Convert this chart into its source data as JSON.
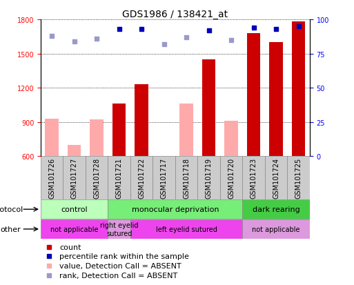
{
  "title": "GDS1986 / 138421_at",
  "samples": [
    "GSM101726",
    "GSM101727",
    "GSM101728",
    "GSM101721",
    "GSM101722",
    "GSM101717",
    "GSM101718",
    "GSM101719",
    "GSM101720",
    "GSM101723",
    "GSM101724",
    "GSM101725"
  ],
  "left_ylim": [
    600,
    1800
  ],
  "left_yticks": [
    600,
    900,
    1200,
    1500,
    1800
  ],
  "right_ylim": [
    0,
    100
  ],
  "right_yticks": [
    0,
    25,
    50,
    75,
    100
  ],
  "bar_red_values": [
    null,
    null,
    null,
    1060,
    1230,
    null,
    null,
    1450,
    null,
    1680,
    1600,
    1780
  ],
  "bar_pink_values": [
    930,
    700,
    920,
    null,
    null,
    580,
    1060,
    null,
    910,
    null,
    null,
    null
  ],
  "dot_blue_values": [
    null,
    null,
    null,
    93,
    93,
    null,
    null,
    92,
    null,
    94,
    93,
    95
  ],
  "dot_lblue_values": [
    88,
    84,
    86,
    null,
    null,
    82,
    87,
    null,
    85,
    null,
    null,
    null
  ],
  "protocol_groups": [
    {
      "label": "control",
      "start": 0,
      "end": 3,
      "color": "#bbffbb"
    },
    {
      "label": "monocular deprivation",
      "start": 3,
      "end": 9,
      "color": "#77ee77"
    },
    {
      "label": "dark rearing",
      "start": 9,
      "end": 12,
      "color": "#44cc44"
    }
  ],
  "other_groups": [
    {
      "label": "not applicable",
      "start": 0,
      "end": 3,
      "color": "#ee44ee"
    },
    {
      "label": "right eyelid\nsutured",
      "start": 3,
      "end": 4,
      "color": "#dd99dd"
    },
    {
      "label": "left eyelid sutured",
      "start": 4,
      "end": 9,
      "color": "#ee44ee"
    },
    {
      "label": "not applicable",
      "start": 9,
      "end": 12,
      "color": "#dd99dd"
    }
  ],
  "bar_red_color": "#cc0000",
  "bar_pink_color": "#ffaaaa",
  "dot_blue_color": "#0000bb",
  "dot_lblue_color": "#9999cc",
  "gray_box_color": "#cccccc",
  "title_fontsize": 10,
  "tick_fontsize": 7,
  "sample_fontsize": 7,
  "label_fontsize": 8,
  "legend_fontsize": 8
}
